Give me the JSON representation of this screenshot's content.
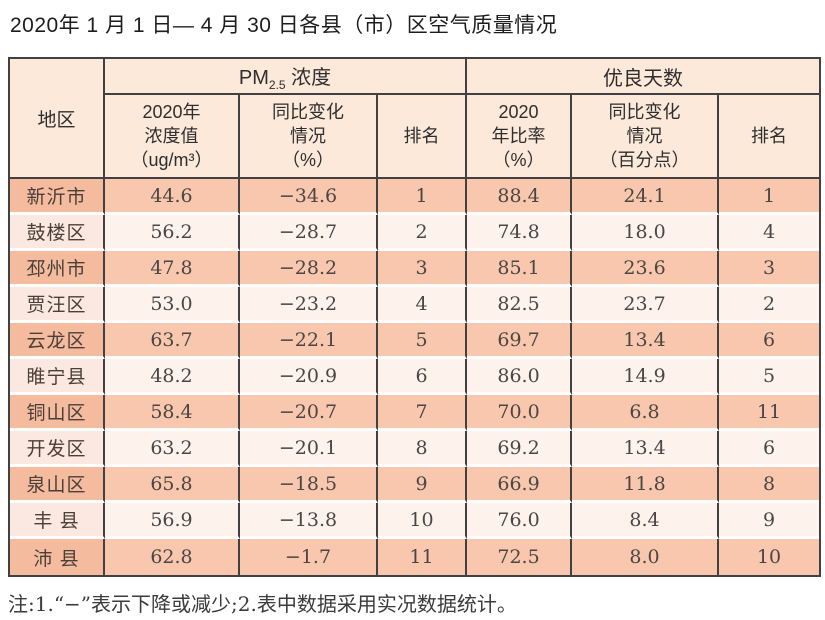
{
  "title": "2020年 1 月 1 日— 4 月 30 日各县（市）区空气质量情况",
  "note": "注:1.“−”表示下降或减少;2.表中数据采用实况数据统计。",
  "colors": {
    "header_bg": "#fce9da",
    "odd_row_bg": "#f8c7ad",
    "odd_region_bg": "#f5bb9f",
    "even_row_bg": "#fdf2ec",
    "even_region_bg": "#fbe8e0",
    "border": "#414141"
  },
  "table": {
    "region_header": "地区",
    "pm_group": {
      "pre": "PM",
      "sub": "2.5",
      "post": " 浓度"
    },
    "days_group": "优良天数",
    "subheaders": [
      "2020年\n浓度值\n（ug/m³）",
      "同比变化\n情况\n（%）",
      "排名",
      "2020\n年比率\n（%）",
      "同比变化\n情况\n（百分点）",
      "排名"
    ],
    "rows": [
      {
        "region": "新沂市",
        "pm_value": "44.6",
        "pm_change": "−34.6",
        "pm_rank": "1",
        "days_ratio": "88.4",
        "days_change": "24.1",
        "days_rank": "1"
      },
      {
        "region": "鼓楼区",
        "pm_value": "56.2",
        "pm_change": "−28.7",
        "pm_rank": "2",
        "days_ratio": "74.8",
        "days_change": "18.0",
        "days_rank": "4"
      },
      {
        "region": "邳州市",
        "pm_value": "47.8",
        "pm_change": "−28.2",
        "pm_rank": "3",
        "days_ratio": "85.1",
        "days_change": "23.6",
        "days_rank": "3"
      },
      {
        "region": "贾汪区",
        "pm_value": "53.0",
        "pm_change": "−23.2",
        "pm_rank": "4",
        "days_ratio": "82.5",
        "days_change": "23.7",
        "days_rank": "2"
      },
      {
        "region": "云龙区",
        "pm_value": "63.7",
        "pm_change": "−22.1",
        "pm_rank": "5",
        "days_ratio": "69.7",
        "days_change": "13.4",
        "days_rank": "6"
      },
      {
        "region": "睢宁县",
        "pm_value": "48.2",
        "pm_change": "−20.9",
        "pm_rank": "6",
        "days_ratio": "86.0",
        "days_change": "14.9",
        "days_rank": "5"
      },
      {
        "region": "铜山区",
        "pm_value": "58.4",
        "pm_change": "−20.7",
        "pm_rank": "7",
        "days_ratio": "70.0",
        "days_change": "6.8",
        "days_rank": "11"
      },
      {
        "region": "开发区",
        "pm_value": "63.2",
        "pm_change": "−20.1",
        "pm_rank": "8",
        "days_ratio": "69.2",
        "days_change": "13.4",
        "days_rank": "6"
      },
      {
        "region": "泉山区",
        "pm_value": "65.8",
        "pm_change": "−18.5",
        "pm_rank": "9",
        "days_ratio": "66.9",
        "days_change": "11.8",
        "days_rank": "8"
      },
      {
        "region": "丰 县",
        "pm_value": "56.9",
        "pm_change": "−13.8",
        "pm_rank": "10",
        "days_ratio": "76.0",
        "days_change": "8.4",
        "days_rank": "9"
      },
      {
        "region": "沛 县",
        "pm_value": "62.8",
        "pm_change": "−1.7",
        "pm_rank": "11",
        "days_ratio": "72.5",
        "days_change": "8.0",
        "days_rank": "10"
      }
    ]
  }
}
